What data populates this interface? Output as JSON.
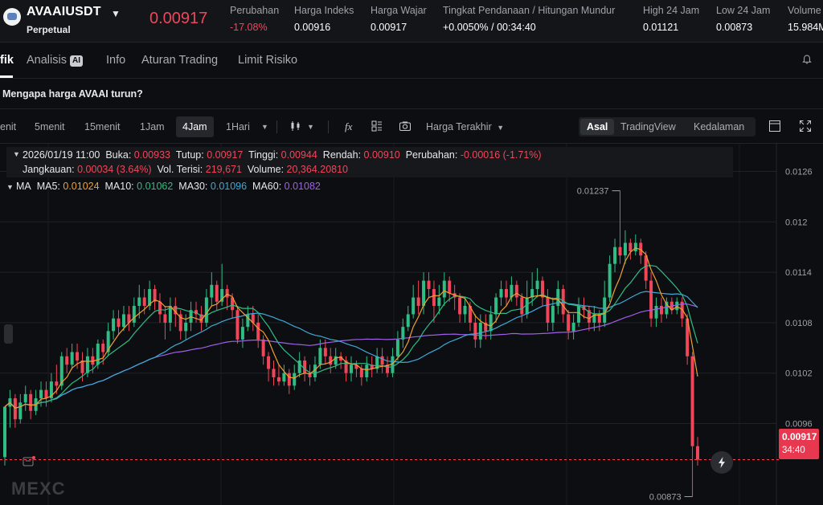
{
  "ticker": {
    "symbol": "AVAAIUSDT",
    "contract_type": "Perpetual",
    "last_price": "0.00917",
    "stats": [
      {
        "label": "Perubahan",
        "value": "-17.08%",
        "tone": "red"
      },
      {
        "label": "Harga Indeks",
        "value": "0.00916",
        "tone": "white"
      },
      {
        "label": "Harga Wajar",
        "value": "0.00917",
        "tone": "white"
      },
      {
        "label": "Tingkat Pendanaan  /  Hitungan Mundur",
        "value": "+0.0050%  /  00:34:40",
        "tone": "white"
      },
      {
        "label": "High 24 Jam",
        "value": "0.01121",
        "tone": "white"
      },
      {
        "label": "Low 24 Jam",
        "value": "0.00873",
        "tone": "white"
      },
      {
        "label": "Volume",
        "value": "15.984M",
        "tone": "white"
      }
    ]
  },
  "tabs": [
    {
      "label": "fik",
      "active": true
    },
    {
      "label": "Analisis",
      "active": false,
      "badge": "AI"
    },
    {
      "label": "Info",
      "active": false
    },
    {
      "label": "Aturan Trading",
      "active": false
    },
    {
      "label": "Limit Risiko",
      "active": false
    }
  ],
  "banner": {
    "text": "Mengapa harga AVAAI turun?"
  },
  "toolbar": {
    "timeframes": [
      {
        "label": "enit",
        "active": false
      },
      {
        "label": "5menit",
        "active": false
      },
      {
        "label": "15menit",
        "active": false
      },
      {
        "label": "1Jam",
        "active": false
      },
      {
        "label": "4Jam",
        "active": true
      },
      {
        "label": "1Hari",
        "active": false
      }
    ],
    "price_type": "Harga Terakhir",
    "views": [
      {
        "label": "Asal",
        "active": true
      },
      {
        "label": "TradingView",
        "active": false
      },
      {
        "label": "Kedalaman",
        "active": false
      }
    ]
  },
  "legend": {
    "datetime": "2026/01/19 11:00",
    "open_label": "Buka:",
    "open": "0.00933",
    "close_label": "Tutup:",
    "close": "0.00917",
    "high_label": "Tinggi:",
    "high": "0.00944",
    "low_label": "Rendah:",
    "low": "0.00910",
    "change_label": "Perubahan:",
    "change": "-0.00016 (-1.71%)",
    "range_label": "Jangkauan:",
    "range": "0.00034 (3.64%)",
    "filled_vol_label": "Vol. Terisi:",
    "filled_vol": "219,671",
    "volume_label": "Volume:",
    "volume": "20,364.20810",
    "ma_title": "MA",
    "ma": [
      {
        "label": "MA5:",
        "value": "0.01024",
        "color": "#f0a030"
      },
      {
        "label": "MA10:",
        "value": "0.01062",
        "color": "#2fbd85"
      },
      {
        "label": "MA30:",
        "value": "0.01096",
        "color": "#3fa9d8"
      },
      {
        "label": "MA60:",
        "value": "0.01082",
        "color": "#a060e8"
      }
    ]
  },
  "price_tag": {
    "price": "0.00917",
    "countdown": "34:40"
  },
  "watermark": "MEXC",
  "chart_data": {
    "type": "candlestick",
    "y_ticks": [
      "0.0126",
      "0.012",
      "0.0114",
      "0.0108",
      "0.0102",
      "0.0096"
    ],
    "ylim": [
      0.00863,
      0.01293
    ],
    "up_color": "#2fbd85",
    "down_color": "#f0465a",
    "high_annotation": "0.01237",
    "low_annotation": "0.00873",
    "current_price": 0.00917,
    "candles": [
      [
        0.0092,
        0.0098,
        0.00975,
        0.0091
      ],
      [
        0.0098,
        0.0099,
        0.01,
        0.00955
      ],
      [
        0.0099,
        0.00965,
        0.00995,
        0.00955
      ],
      [
        0.00965,
        0.00985,
        0.00995,
        0.0096
      ],
      [
        0.00985,
        0.00995,
        0.01005,
        0.00975
      ],
      [
        0.00995,
        0.00975,
        0.01,
        0.00965
      ],
      [
        0.00975,
        0.0099,
        0.01,
        0.0097
      ],
      [
        0.0099,
        0.01,
        0.0101,
        0.0098
      ],
      [
        0.01,
        0.0099,
        0.0101,
        0.0098
      ],
      [
        0.0099,
        0.0101,
        0.0102,
        0.00985
      ],
      [
        0.0101,
        0.01005,
        0.0103,
        0.00995
      ],
      [
        0.01005,
        0.0104,
        0.01045,
        0.01
      ],
      [
        0.0104,
        0.0103,
        0.0105,
        0.0102
      ],
      [
        0.0103,
        0.01045,
        0.01055,
        0.01025
      ],
      [
        0.01045,
        0.01035,
        0.01055,
        0.01025
      ],
      [
        0.01035,
        0.0102,
        0.01045,
        0.0101
      ],
      [
        0.0102,
        0.0104,
        0.0105,
        0.01015
      ],
      [
        0.0104,
        0.0103,
        0.0105,
        0.0102
      ],
      [
        0.0103,
        0.01055,
        0.0106,
        0.01025
      ],
      [
        0.01055,
        0.01045,
        0.0106,
        0.0103
      ],
      [
        0.01045,
        0.0107,
        0.0108,
        0.0104
      ],
      [
        0.0107,
        0.01085,
        0.01095,
        0.0106
      ],
      [
        0.01085,
        0.01075,
        0.01095,
        0.01065
      ],
      [
        0.01075,
        0.0109,
        0.011,
        0.0107
      ],
      [
        0.0109,
        0.0108,
        0.011,
        0.0107
      ],
      [
        0.0108,
        0.011,
        0.0111,
        0.01075
      ],
      [
        0.011,
        0.0111,
        0.01125,
        0.01085
      ],
      [
        0.0111,
        0.011,
        0.0112,
        0.0109
      ],
      [
        0.011,
        0.0112,
        0.0113,
        0.01095
      ],
      [
        0.0112,
        0.01105,
        0.01125,
        0.01095
      ],
      [
        0.01105,
        0.0109,
        0.01115,
        0.0108
      ],
      [
        0.0109,
        0.0108,
        0.011,
        0.0106
      ],
      [
        0.0108,
        0.011,
        0.0111,
        0.0107
      ],
      [
        0.011,
        0.0109,
        0.0111,
        0.01075
      ],
      [
        0.0109,
        0.0107,
        0.01095,
        0.0106
      ],
      [
        0.0107,
        0.0108,
        0.0109,
        0.0106
      ],
      [
        0.0108,
        0.01095,
        0.01105,
        0.0107
      ],
      [
        0.01095,
        0.0109,
        0.01105,
        0.0108
      ],
      [
        0.0109,
        0.0108,
        0.011,
        0.0107
      ],
      [
        0.0108,
        0.0111,
        0.0112,
        0.01075
      ],
      [
        0.0111,
        0.01125,
        0.0114,
        0.011
      ],
      [
        0.01125,
        0.01105,
        0.0113,
        0.01095
      ],
      [
        0.01105,
        0.0112,
        0.0115,
        0.011
      ],
      [
        0.0112,
        0.0111,
        0.01125,
        0.01095
      ],
      [
        0.0111,
        0.01095,
        0.01115,
        0.01085
      ],
      [
        0.01095,
        0.0106,
        0.011,
        0.01055
      ],
      [
        0.0106,
        0.01075,
        0.01085,
        0.0105
      ],
      [
        0.01075,
        0.0109,
        0.011,
        0.0107
      ],
      [
        0.0109,
        0.0108,
        0.011,
        0.0107
      ],
      [
        0.0108,
        0.0106,
        0.0109,
        0.0105
      ],
      [
        0.0106,
        0.0104,
        0.01065,
        0.0103
      ],
      [
        0.0104,
        0.01025,
        0.01045,
        0.0101
      ],
      [
        0.01025,
        0.01015,
        0.01035,
        0.01005
      ],
      [
        0.01015,
        0.0101,
        0.0103,
        0.01005
      ],
      [
        0.0101,
        0.0102,
        0.0103,
        0.01005
      ],
      [
        0.0102,
        0.01005,
        0.01025,
        0.00995
      ],
      [
        0.01005,
        0.0102,
        0.0103,
        0.01
      ],
      [
        0.0102,
        0.01035,
        0.01045,
        0.01015
      ],
      [
        0.01035,
        0.0102,
        0.0104,
        0.0101
      ],
      [
        0.0102,
        0.01015,
        0.0103,
        0.01005
      ],
      [
        0.01015,
        0.0103,
        0.0104,
        0.0101
      ],
      [
        0.0103,
        0.0105,
        0.0106,
        0.01025
      ],
      [
        0.0105,
        0.0104,
        0.0106,
        0.0103
      ],
      [
        0.0104,
        0.0103,
        0.0105,
        0.0102
      ],
      [
        0.0103,
        0.0104,
        0.0105,
        0.01025
      ],
      [
        0.0104,
        0.01035,
        0.01045,
        0.01025
      ],
      [
        0.01035,
        0.0102,
        0.0104,
        0.0101
      ],
      [
        0.0102,
        0.0103,
        0.0104,
        0.0101
      ],
      [
        0.0103,
        0.01025,
        0.01035,
        0.01015
      ],
      [
        0.01025,
        0.01015,
        0.0103,
        0.01005
      ],
      [
        0.01015,
        0.0103,
        0.0104,
        0.0101
      ],
      [
        0.0103,
        0.01025,
        0.0104,
        0.01015
      ],
      [
        0.01025,
        0.0104,
        0.0105,
        0.0102
      ],
      [
        0.0104,
        0.0103,
        0.0105,
        0.0102
      ],
      [
        0.0103,
        0.0102,
        0.0104,
        0.01015
      ],
      [
        0.0102,
        0.0104,
        0.0105,
        0.01015
      ],
      [
        0.0104,
        0.0106,
        0.0107,
        0.01035
      ],
      [
        0.0106,
        0.01075,
        0.01085,
        0.0105
      ],
      [
        0.01075,
        0.0109,
        0.011,
        0.0107
      ],
      [
        0.0109,
        0.0111,
        0.01125,
        0.01085
      ],
      [
        0.0111,
        0.011,
        0.0113,
        0.0109
      ],
      [
        0.011,
        0.0113,
        0.0114,
        0.0109
      ],
      [
        0.0113,
        0.0112,
        0.0114,
        0.0111
      ],
      [
        0.0112,
        0.011,
        0.0113,
        0.0108
      ],
      [
        0.011,
        0.0111,
        0.01125,
        0.0109
      ],
      [
        0.0111,
        0.0113,
        0.0114,
        0.011
      ],
      [
        0.0113,
        0.01115,
        0.01135,
        0.01105
      ],
      [
        0.01115,
        0.0111,
        0.01125,
        0.01095
      ],
      [
        0.0111,
        0.0109,
        0.01115,
        0.0108
      ],
      [
        0.0109,
        0.011,
        0.0111,
        0.0108
      ],
      [
        0.011,
        0.0108,
        0.01105,
        0.0107
      ],
      [
        0.0108,
        0.0106,
        0.0109,
        0.0105
      ],
      [
        0.0106,
        0.0108,
        0.0109,
        0.0105
      ],
      [
        0.0108,
        0.0107,
        0.0109,
        0.0106
      ],
      [
        0.0107,
        0.0109,
        0.011,
        0.0106
      ],
      [
        0.0109,
        0.0111,
        0.01115,
        0.0108
      ],
      [
        0.0111,
        0.0112,
        0.0113,
        0.011
      ],
      [
        0.0112,
        0.0111,
        0.0113,
        0.011
      ],
      [
        0.0111,
        0.01125,
        0.01135,
        0.01105
      ],
      [
        0.01125,
        0.0111,
        0.0113,
        0.011
      ],
      [
        0.0111,
        0.0109,
        0.01115,
        0.0108
      ],
      [
        0.0109,
        0.0111,
        0.0113,
        0.01085
      ],
      [
        0.0111,
        0.0112,
        0.0114,
        0.011
      ],
      [
        0.0112,
        0.0113,
        0.01145,
        0.0111
      ],
      [
        0.0113,
        0.0111,
        0.01135,
        0.011
      ],
      [
        0.0111,
        0.0108,
        0.0112,
        0.0107
      ],
      [
        0.0108,
        0.011,
        0.0111,
        0.0107
      ],
      [
        0.011,
        0.0112,
        0.0113,
        0.0109
      ],
      [
        0.0112,
        0.0109,
        0.01125,
        0.0108
      ],
      [
        0.0109,
        0.0107,
        0.01095,
        0.0106
      ],
      [
        0.0107,
        0.0108,
        0.0109,
        0.0106
      ],
      [
        0.0108,
        0.011,
        0.0111,
        0.01075
      ],
      [
        0.011,
        0.01095,
        0.0111,
        0.01085
      ],
      [
        0.01095,
        0.0108,
        0.011,
        0.0107
      ],
      [
        0.0108,
        0.0109,
        0.011,
        0.0107
      ],
      [
        0.0109,
        0.0108,
        0.01095,
        0.0107
      ],
      [
        0.0108,
        0.0111,
        0.0113,
        0.01075
      ],
      [
        0.0111,
        0.0115,
        0.0116,
        0.01105
      ],
      [
        0.0115,
        0.0117,
        0.0118,
        0.0114
      ],
      [
        0.0117,
        0.0116,
        0.01237,
        0.0115
      ],
      [
        0.0116,
        0.01175,
        0.0119,
        0.0115
      ],
      [
        0.01175,
        0.01165,
        0.0118,
        0.01155
      ],
      [
        0.01165,
        0.01175,
        0.01185,
        0.0116
      ],
      [
        0.01175,
        0.0116,
        0.0118,
        0.0115
      ],
      [
        0.0116,
        0.0113,
        0.01165,
        0.0112
      ],
      [
        0.0113,
        0.01085,
        0.0114,
        0.01075
      ],
      [
        0.01085,
        0.011,
        0.0111,
        0.01075
      ],
      [
        0.011,
        0.0109,
        0.0111,
        0.0108
      ],
      [
        0.0109,
        0.01105,
        0.0111,
        0.01085
      ],
      [
        0.01105,
        0.01095,
        0.0111,
        0.0109
      ],
      [
        0.01095,
        0.01105,
        0.0111,
        0.0109
      ],
      [
        0.01105,
        0.01085,
        0.0111,
        0.01075
      ],
      [
        0.01085,
        0.0104,
        0.0109,
        0.0103
      ],
      [
        0.0104,
        0.00933,
        0.01045,
        0.00873
      ],
      [
        0.00933,
        0.00917,
        0.00944,
        0.0091
      ]
    ]
  }
}
